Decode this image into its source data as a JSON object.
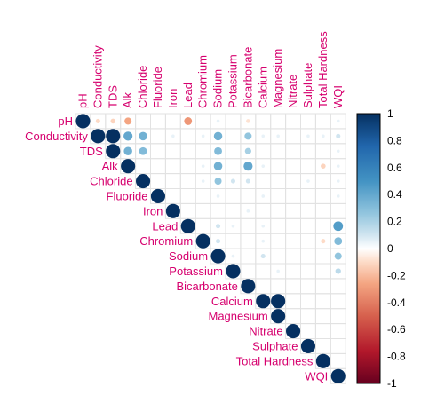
{
  "chart_data": {
    "type": "heatmap",
    "subtype": "correlation-matrix-upper-circles",
    "variables": [
      "pH",
      "Conductivity",
      "TDS",
      "Alk",
      "Chloride",
      "Fluoride",
      "Iron",
      "Lead",
      "Chromium",
      "Sodium",
      "Potassium",
      "Bicarbonate",
      "Calcium",
      "Magnesium",
      "Nitrate",
      "Sulphate",
      "Total Hardness",
      "WQI"
    ],
    "colorbar": {
      "ticks": [
        "1",
        "0.8",
        "0.6",
        "0.4",
        "0.2",
        "0",
        "-0.2",
        "-0.4",
        "-0.6",
        "-0.8",
        "-1"
      ],
      "range": [
        -1,
        1
      ],
      "colors": {
        "negative": "#67001f",
        "neutral": "#ffffff",
        "positive": "#053061"
      }
    },
    "grid": true,
    "legend_position": "right",
    "correlations": [
      {
        "row": "pH",
        "col": "pH",
        "r": 1.0
      },
      {
        "row": "pH",
        "col": "Conductivity",
        "r": -0.1
      },
      {
        "row": "pH",
        "col": "TDS",
        "r": -0.12
      },
      {
        "row": "pH",
        "col": "Alk",
        "r": -0.25
      },
      {
        "row": "pH",
        "col": "Lead",
        "r": -0.3
      },
      {
        "row": "pH",
        "col": "Sodium",
        "r": 0.05
      },
      {
        "row": "pH",
        "col": "Bicarbonate",
        "r": -0.08
      },
      {
        "row": "pH",
        "col": "WQI",
        "r": 0.05
      },
      {
        "row": "Conductivity",
        "col": "Conductivity",
        "r": 1.0
      },
      {
        "row": "Conductivity",
        "col": "TDS",
        "r": 1.0
      },
      {
        "row": "Conductivity",
        "col": "Alk",
        "r": 0.4
      },
      {
        "row": "Conductivity",
        "col": "Chloride",
        "r": 0.35
      },
      {
        "row": "Conductivity",
        "col": "Iron",
        "r": 0.05
      },
      {
        "row": "Conductivity",
        "col": "Chromium",
        "r": 0.05
      },
      {
        "row": "Conductivity",
        "col": "Sodium",
        "r": 0.35
      },
      {
        "row": "Conductivity",
        "col": "Bicarbonate",
        "r": 0.25
      },
      {
        "row": "Conductivity",
        "col": "Calcium",
        "r": 0.05
      },
      {
        "row": "Conductivity",
        "col": "Magnesium",
        "r": 0.05
      },
      {
        "row": "Conductivity",
        "col": "Sulphate",
        "r": 0.05
      },
      {
        "row": "Conductivity",
        "col": "Total Hardness",
        "r": 0.05
      },
      {
        "row": "Conductivity",
        "col": "WQI",
        "r": 0.1
      },
      {
        "row": "TDS",
        "col": "TDS",
        "r": 1.0
      },
      {
        "row": "TDS",
        "col": "Alk",
        "r": 0.35
      },
      {
        "row": "TDS",
        "col": "Chloride",
        "r": 0.3
      },
      {
        "row": "TDS",
        "col": "Sodium",
        "r": 0.3
      },
      {
        "row": "TDS",
        "col": "Bicarbonate",
        "r": 0.2
      },
      {
        "row": "TDS",
        "col": "WQI",
        "r": 0.05
      },
      {
        "row": "Alk",
        "col": "Alk",
        "r": 1.0
      },
      {
        "row": "Alk",
        "col": "Chromium",
        "r": 0.05
      },
      {
        "row": "Alk",
        "col": "Sodium",
        "r": 0.35
      },
      {
        "row": "Alk",
        "col": "Bicarbonate",
        "r": 0.4
      },
      {
        "row": "Alk",
        "col": "Calcium",
        "r": 0.05
      },
      {
        "row": "Alk",
        "col": "Total Hardness",
        "r": -0.12
      },
      {
        "row": "Alk",
        "col": "WQI",
        "r": 0.05
      },
      {
        "row": "Chloride",
        "col": "Chloride",
        "r": 1.0
      },
      {
        "row": "Chloride",
        "col": "Chromium",
        "r": 0.05
      },
      {
        "row": "Chloride",
        "col": "Sodium",
        "r": 0.25
      },
      {
        "row": "Chloride",
        "col": "Potassium",
        "r": 0.1
      },
      {
        "row": "Chloride",
        "col": "Bicarbonate",
        "r": 0.1
      },
      {
        "row": "Chloride",
        "col": "Sulphate",
        "r": 0.05
      },
      {
        "row": "Chloride",
        "col": "WQI",
        "r": 0.05
      },
      {
        "row": "Fluoride",
        "col": "Fluoride",
        "r": 1.0
      },
      {
        "row": "Fluoride",
        "col": "Sodium",
        "r": 0.05
      },
      {
        "row": "Fluoride",
        "col": "Calcium",
        "r": 0.05
      },
      {
        "row": "Fluoride",
        "col": "WQI",
        "r": 0.05
      },
      {
        "row": "Iron",
        "col": "Iron",
        "r": 1.0
      },
      {
        "row": "Iron",
        "col": "Bicarbonate",
        "r": 0.05
      },
      {
        "row": "Lead",
        "col": "Lead",
        "r": 1.0
      },
      {
        "row": "Lead",
        "col": "Sodium",
        "r": 0.1
      },
      {
        "row": "Lead",
        "col": "Potassium",
        "r": 0.05
      },
      {
        "row": "Lead",
        "col": "Calcium",
        "r": 0.05
      },
      {
        "row": "Lead",
        "col": "WQI",
        "r": 0.45
      },
      {
        "row": "Chromium",
        "col": "Chromium",
        "r": 1.0
      },
      {
        "row": "Chromium",
        "col": "Sodium",
        "r": 0.1
      },
      {
        "row": "Chromium",
        "col": "Calcium",
        "r": 0.05
      },
      {
        "row": "Chromium",
        "col": "Total Hardness",
        "r": -0.1
      },
      {
        "row": "Chromium",
        "col": "WQI",
        "r": 0.3
      },
      {
        "row": "Sodium",
        "col": "Sodium",
        "r": 1.0
      },
      {
        "row": "Sodium",
        "col": "Potassium",
        "r": 0.05
      },
      {
        "row": "Sodium",
        "col": "Calcium",
        "r": 0.1
      },
      {
        "row": "Sodium",
        "col": "WQI",
        "r": 0.25
      },
      {
        "row": "Potassium",
        "col": "Potassium",
        "r": 1.0
      },
      {
        "row": "Potassium",
        "col": "Magnesium",
        "r": 0.05
      },
      {
        "row": "Potassium",
        "col": "WQI",
        "r": 0.15
      },
      {
        "row": "Bicarbonate",
        "col": "Bicarbonate",
        "r": 1.0
      },
      {
        "row": "Calcium",
        "col": "Calcium",
        "r": 1.0
      },
      {
        "row": "Calcium",
        "col": "Magnesium",
        "r": 1.0
      },
      {
        "row": "Magnesium",
        "col": "Magnesium",
        "r": 1.0
      },
      {
        "row": "Nitrate",
        "col": "Nitrate",
        "r": 1.0
      },
      {
        "row": "Sulphate",
        "col": "Sulphate",
        "r": 1.0
      },
      {
        "row": "Total Hardness",
        "col": "Total Hardness",
        "r": 1.0
      },
      {
        "row": "WQI",
        "col": "WQI",
        "r": 1.0
      }
    ]
  }
}
